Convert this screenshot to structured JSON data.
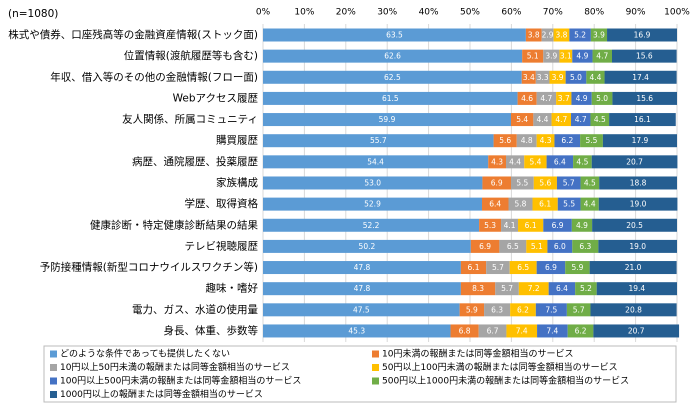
{
  "chart_data": {
    "type": "stacked-bar-horizontal",
    "annotation": "(n=1080)",
    "categories": [
      "株式や債券、口座残高等の金融資産情報(ストック面)",
      "位置情報(渡航履歴等も含む)",
      "年収、借入等のその他の金融情報(フロー面)",
      "Webアクセス履歴",
      "友人関係、所属コミュニティ",
      "購買履歴",
      "病歴、通院履歴、投薬履歴",
      "家族構成",
      "学歴、取得資格",
      "健康診断・特定健康診断結果の結果",
      "テレビ視聴履歴",
      "予防接種情報(新型コロナウイルスワクチン等)",
      "趣味・嗜好",
      "電力、ガス、水道の使用量",
      "身長、体重、歩数等"
    ],
    "series": [
      {
        "name": "どのような条件であっても提供したくない",
        "color": "#5b9bd5",
        "values": [
          63.5,
          62.6,
          62.5,
          61.5,
          59.9,
          55.7,
          54.4,
          53.0,
          52.9,
          52.2,
          50.2,
          47.8,
          47.8,
          47.5,
          45.3
        ],
        "value_labels": [
          "63.5",
          "62.6",
          "62.5",
          "61.5",
          "59.9",
          "55.7",
          "54.4",
          "53.0",
          "52.9",
          "52.2",
          "50.2",
          "47.8",
          "47.8",
          "47.5",
          "45.3"
        ]
      },
      {
        "name": "10円未満の報酬または同等金額相当のサービス",
        "color": "#ed7d31",
        "values": [
          3.8,
          5.1,
          3.4,
          4.6,
          5.4,
          5.6,
          4.3,
          6.9,
          6.4,
          5.3,
          6.9,
          6.1,
          8.3,
          5.9,
          6.8
        ],
        "value_labels": [
          "3.8",
          "5.1",
          "3.4",
          "4.6",
          "5.4",
          "5.6",
          "4.3",
          "6.9",
          "6.4",
          "5.3",
          "6.9",
          "6.1",
          "8.3",
          "5.9",
          "6.8"
        ]
      },
      {
        "name": "10円以上50円未満の報酬または同等金額相当のサービス",
        "color": "#a5a5a5",
        "values": [
          2.9,
          3.9,
          3.3,
          4.7,
          4.4,
          4.8,
          4.4,
          5.5,
          5.8,
          4.1,
          6.5,
          5.7,
          5.7,
          6.3,
          6.7
        ],
        "value_labels": [
          "2.9",
          "3.9",
          "3.3",
          "4.7",
          "4.4",
          "4.8",
          "4.4",
          "5.5",
          "5.8",
          "4.1",
          "6.5",
          "5.7",
          "5.7",
          "6.3",
          "6.7"
        ]
      },
      {
        "name": "50円以上100円未満の報酬または同等金額相当のサービス",
        "color": "#ffc000",
        "values": [
          3.8,
          3.1,
          3.9,
          3.7,
          4.7,
          4.3,
          5.4,
          5.6,
          6.1,
          6.1,
          5.1,
          6.5,
          7.2,
          6.2,
          7.4
        ],
        "value_labels": [
          "3.8",
          "3.1",
          "3.9",
          "3.7",
          "4.7",
          "4.3",
          "5.4",
          "5.6",
          "6.1",
          "6.1",
          "5.1",
          "6.5",
          "7.2",
          "6.2",
          "7.4"
        ]
      },
      {
        "name": "100円以上500円未満の報酬または同等金額相当のサービス",
        "color": "#4472c4",
        "values": [
          5.2,
          4.9,
          5.0,
          4.9,
          4.7,
          6.2,
          6.4,
          5.7,
          5.5,
          6.9,
          6.0,
          6.9,
          6.4,
          7.5,
          7.4
        ],
        "value_labels": [
          "5.2",
          "4.9",
          "5.0",
          "4.9",
          "4.7",
          "6.2",
          "6.4",
          "5.7",
          "5.5",
          "6.9",
          "6.0",
          "6.9",
          "6.4",
          "7.5",
          "7.4"
        ]
      },
      {
        "name": "500円以上1000円未満の報酬または同等金額相当のサービス",
        "color": "#70ad47",
        "values": [
          3.9,
          4.7,
          4.4,
          5.0,
          4.5,
          5.5,
          4.5,
          4.5,
          4.4,
          4.9,
          6.3,
          5.9,
          5.2,
          5.7,
          6.2
        ],
        "value_labels": [
          "3.9",
          "4.7",
          "4.4",
          "5.0",
          "4.5",
          "5.5",
          "4.5",
          "4.5",
          "4.4",
          "4.9",
          "6.3",
          "5.9",
          "5.2",
          "5.7",
          "6.2"
        ]
      },
      {
        "name": "1000円以上の報酬または同等金額相当のサービス",
        "color": "#255e91",
        "values": [
          16.9,
          15.6,
          17.4,
          15.6,
          16.1,
          17.9,
          20.7,
          18.8,
          19.0,
          20.5,
          19.0,
          21.0,
          19.4,
          20.8,
          20.7
        ],
        "value_labels": [
          "16.9",
          "15.6",
          "17.4",
          "15.6",
          "16.1",
          "17.9",
          "20.7",
          "18.8",
          "19.0",
          "20.5",
          "19.0",
          "21.0",
          "19.4",
          "20.8",
          "20.7"
        ]
      }
    ],
    "xlim": [
      0,
      100
    ],
    "xticks": [
      {
        "value": 0,
        "label": "0%"
      },
      {
        "value": 10,
        "label": "10%"
      },
      {
        "value": 20,
        "label": "20%"
      },
      {
        "value": 30,
        "label": "30%"
      },
      {
        "value": 40,
        "label": "40%"
      },
      {
        "value": 50,
        "label": "50%"
      },
      {
        "value": 60,
        "label": "60%"
      },
      {
        "value": 70,
        "label": "70%"
      },
      {
        "value": 80,
        "label": "80%"
      },
      {
        "value": 90,
        "label": "90%"
      },
      {
        "value": 100,
        "label": "100%"
      }
    ],
    "grid": true
  }
}
